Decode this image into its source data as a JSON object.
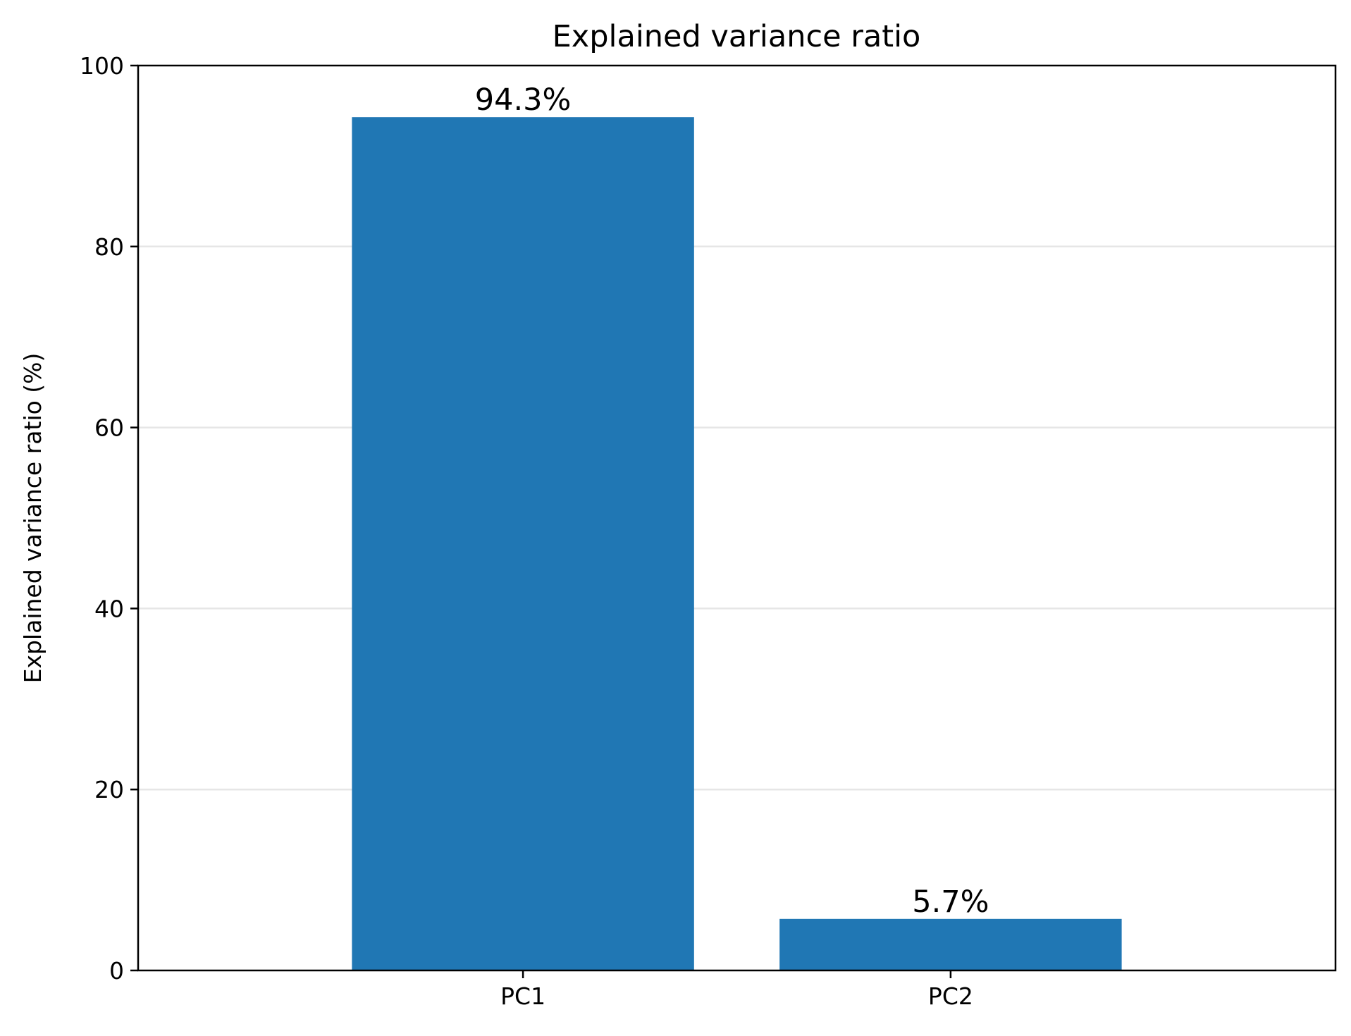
{
  "chart_data": {
    "type": "bar",
    "title": "Explained variance ratio",
    "xlabel": "",
    "ylabel": "Explained variance ratio (%)",
    "categories": [
      "PC1",
      "PC2"
    ],
    "values": [
      94.3,
      5.7
    ],
    "value_labels": [
      "94.3%",
      "5.7%"
    ],
    "ylim": [
      0,
      100
    ],
    "yticks": [
      0,
      20,
      40,
      60,
      80,
      100
    ],
    "ytick_labels": [
      "0",
      "20",
      "40",
      "60",
      "80",
      "100"
    ],
    "grid": "y-major",
    "colors": {
      "bar": "#2077b4",
      "grid": "#e6e6e6"
    }
  }
}
